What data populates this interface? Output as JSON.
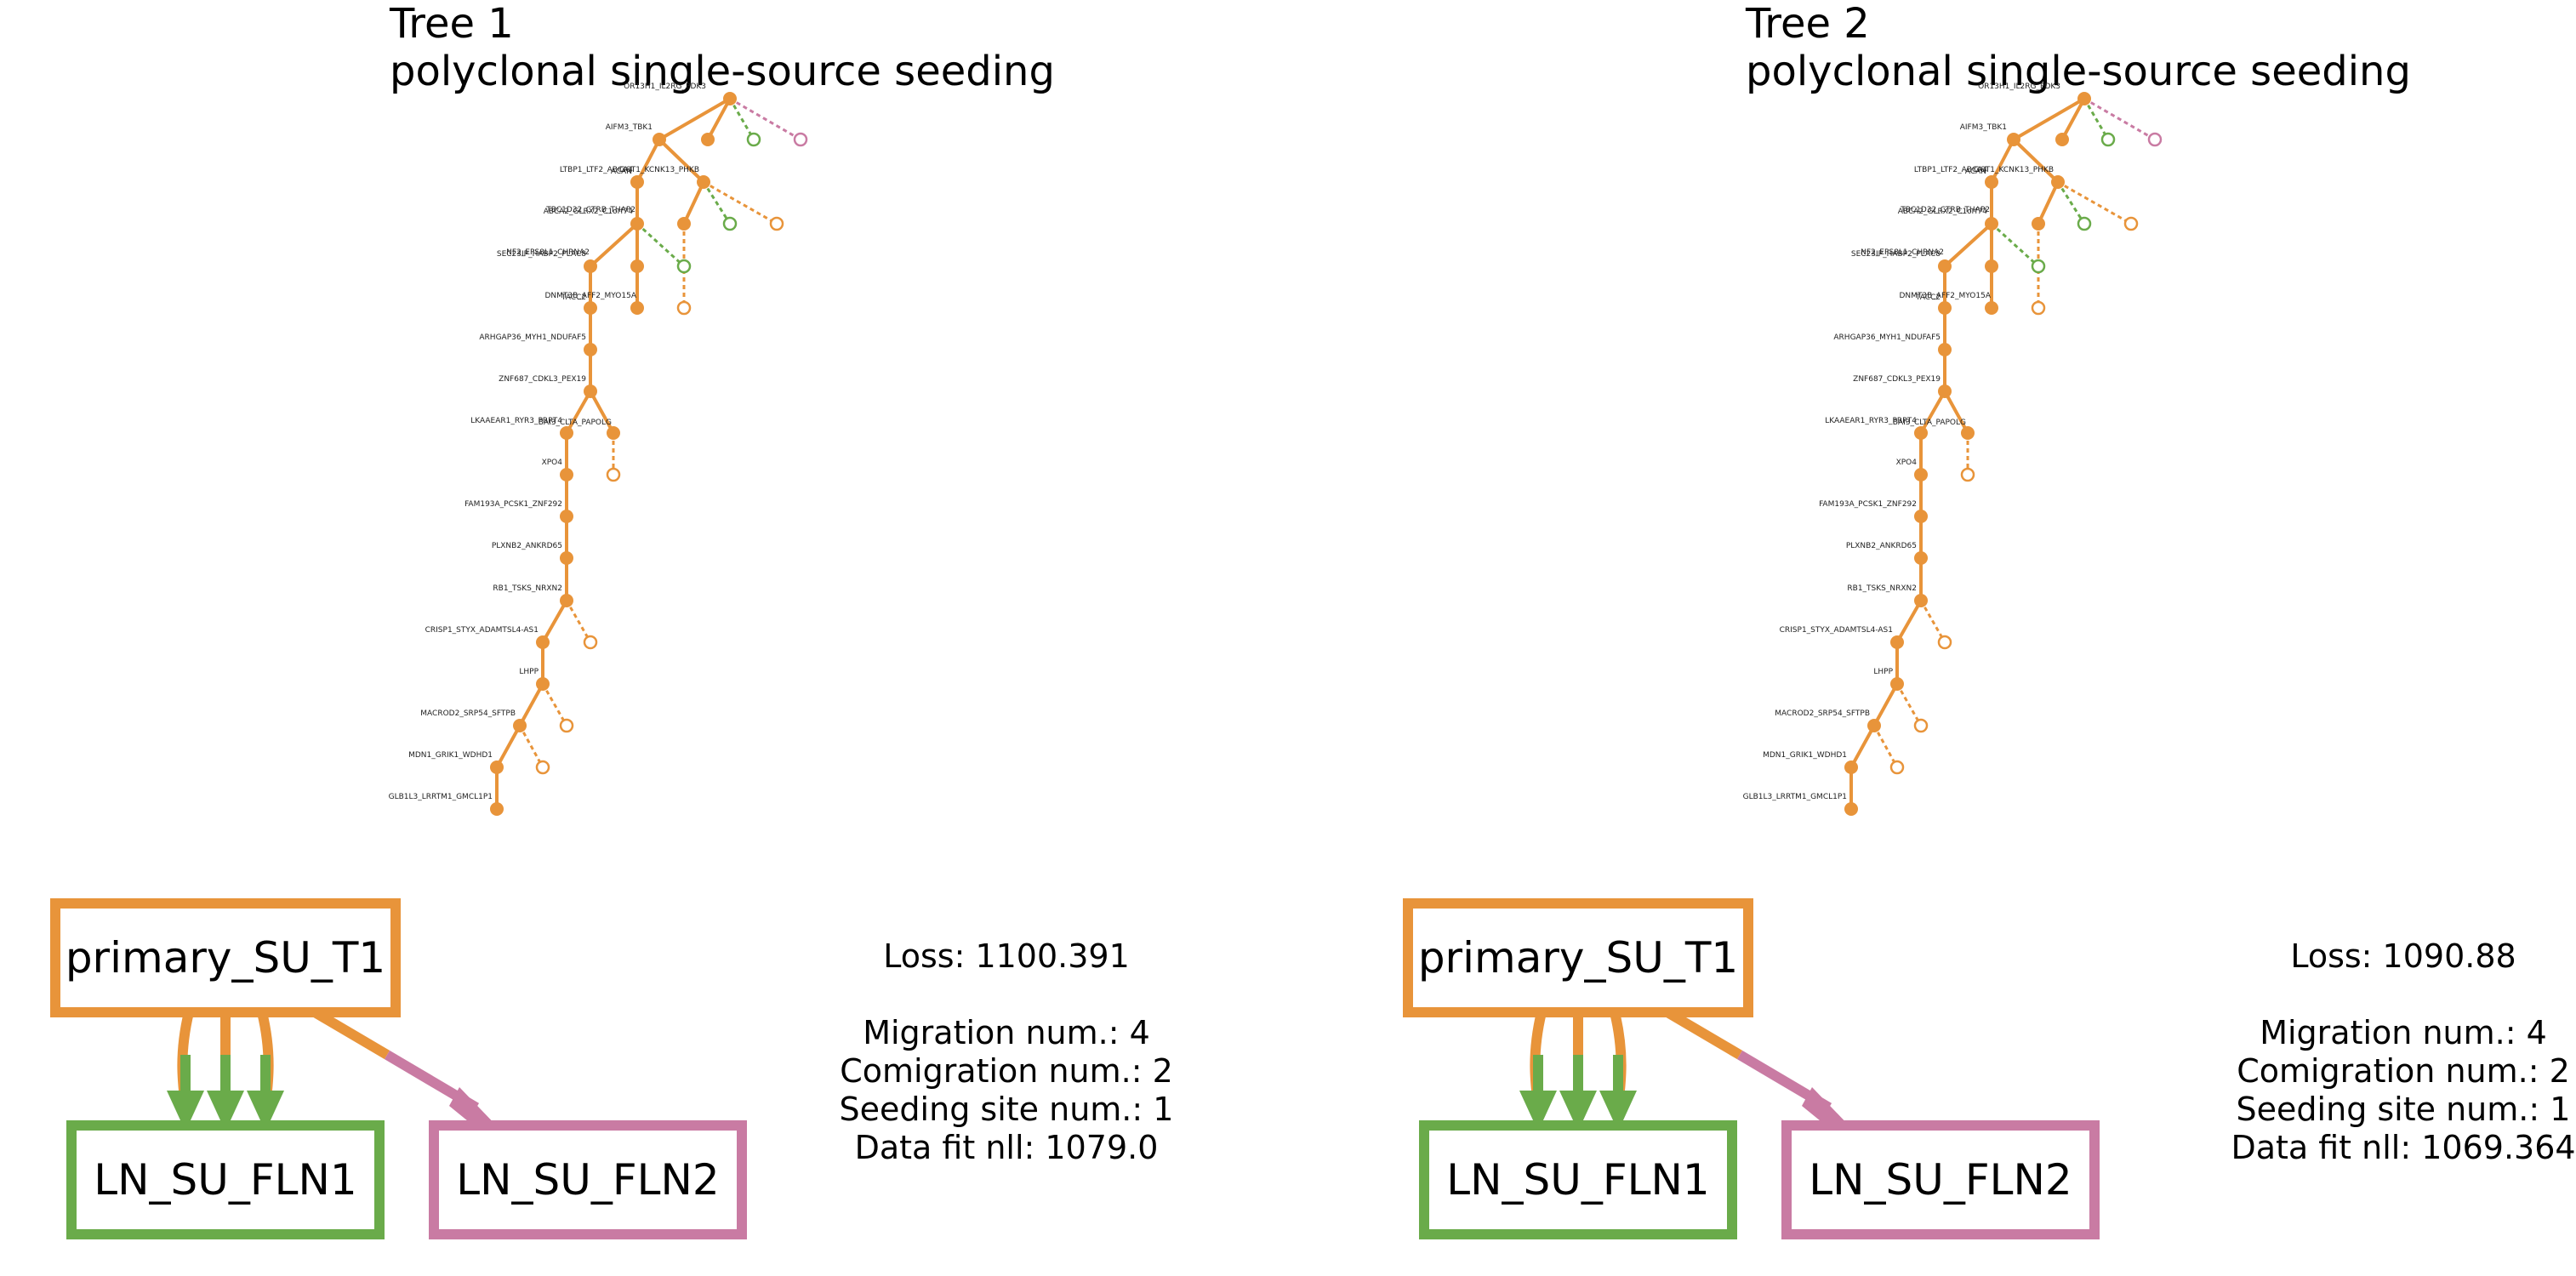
{
  "colors": {
    "primary": "#e8943a",
    "ln1": "#6aab4a",
    "ln2": "#c97ba3"
  },
  "panels": [
    {
      "title": "Tree 1",
      "subtitle": "polyclonal single-source seeding",
      "stats": {
        "loss": "Loss: 1100.391",
        "migration": "Migration num.: 4",
        "comigration": "Comigration num.: 2",
        "seeding": "Seeding site num.: 1",
        "datafit": "Data fit nll: 1079.0"
      },
      "graph": {
        "source": "primary_SU_T1",
        "target1": "LN_SU_FLN1",
        "target2": "LN_SU_FLN2"
      },
      "tree_labels": [
        "OR13H1_IL2RG_PDK3",
        "AIFM3_TBK1",
        "LTBP1_LTF2_ABCA4",
        "ACAN",
        "GGT1_KCNK13_PHKB",
        "ABCA2_GLRX2_C1orf74",
        "TBC1D32_CTRB_THAP2",
        "SEC23IP_HABP2_PLAC8",
        "NF2_EPS8L1_CHRNA2",
        "TACC2",
        "DNMT3B_AFF2_MYO15A",
        "ARHGAP36_MYH1_NDUFAF5",
        "ZNF687_CDKL3_PEX19",
        "LKAAEAR1_RYR3_PRRT4",
        "BAI3_CLTA_PAPOLG",
        "XPO4",
        "FAM193A_PCSK1_ZNF292",
        "PLXNB2_ANKRD65",
        "RB1_TSKS_NRXN2",
        "CRISP1_STYX_ADAMTSL4-AS1",
        "LHPP",
        "MACROD2_SRP54_SFTPB",
        "MDN1_GRIK1_WDHD1",
        "GLB1L3_LRRTM1_GMCL1P1"
      ]
    },
    {
      "title": "Tree 2",
      "subtitle": "polyclonal single-source seeding",
      "stats": {
        "loss": "Loss: 1090.88",
        "migration": "Migration num.: 4",
        "comigration": "Comigration num.: 2",
        "seeding": "Seeding site num.: 1",
        "datafit": "Data fit nll: 1069.364"
      },
      "graph": {
        "source": "primary_SU_T1",
        "target1": "LN_SU_FLN1",
        "target2": "LN_SU_FLN2"
      },
      "tree_labels": [
        "OR13H1_IL2RG_PDK3",
        "AIFM3_TBK1",
        "LTBP1_LTF2_ABCA4",
        "ACAN",
        "GGT1_KCNK13_PHKB",
        "ABCA2_GLRX2_C1orf74",
        "TBC1D32_CTRB_THAP2",
        "SEC23IP_HABP2_PLAC8",
        "NF2_EPS8L1_CHRNA2",
        "TACC2",
        "DNMT3B_AFF2_MYO15A",
        "ARHGAP36_MYH1_NDUFAF5",
        "ZNF687_CDKL3_PEX19",
        "LKAAEAR1_RYR3_PRRT4",
        "BAI3_CLTA_PAPOLG",
        "XPO4",
        "FAM193A_PCSK1_ZNF292",
        "PLXNB2_ANKRD65",
        "RB1_TSKS_NRXN2",
        "CRISP1_STYX_ADAMTSL4-AS1",
        "LHPP",
        "MACROD2_SRP54_SFTPB",
        "MDN1_GRIK1_WDHD1",
        "GLB1L3_LRRTM1_GMCL1P1"
      ]
    }
  ]
}
